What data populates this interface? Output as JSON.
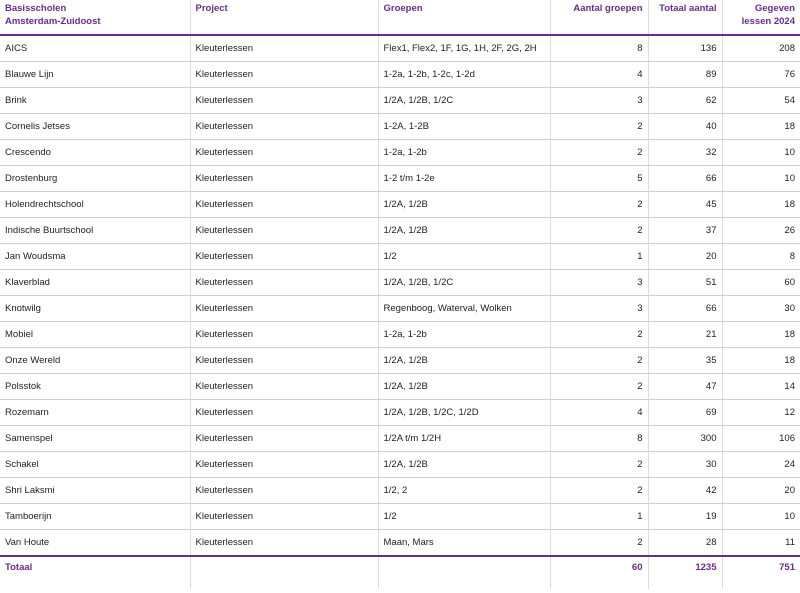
{
  "header": [
    [
      "Basisscholen",
      "Amsterdam-Zuidoost"
    ],
    "Project",
    "Groepen",
    "Aantal groepen",
    "Totaal aantal",
    "Gegeven lessen 2024"
  ],
  "rows": [
    [
      "AICS",
      "Kleuterlessen",
      "Flex1, Flex2, 1F, 1G, 1H, 2F, 2G, 2H",
      8,
      136,
      208
    ],
    [
      "Blauwe Lijn",
      "Kleuterlessen",
      "1-2a, 1-2b, 1-2c, 1-2d",
      4,
      89,
      76
    ],
    [
      "Brink",
      "Kleuterlessen",
      "1/2A, 1/2B, 1/2C",
      3,
      62,
      54
    ],
    [
      "Cornelis Jetses",
      "Kleuterlessen",
      "1-2A, 1-2B",
      2,
      40,
      18
    ],
    [
      "Crescendo",
      "Kleuterlessen",
      "1-2a, 1-2b",
      2,
      32,
      10
    ],
    [
      "Drostenburg",
      "Kleuterlessen",
      "1-2 t/m 1-2e",
      5,
      66,
      10
    ],
    [
      "Holendrechtschool",
      "Kleuterlessen",
      "1/2A, 1/2B",
      2,
      45,
      18
    ],
    [
      "Indische Buurtschool",
      "Kleuterlessen",
      "1/2A, 1/2B",
      2,
      37,
      26
    ],
    [
      "Jan Woudsma",
      "Kleuterlessen",
      "1/2",
      1,
      20,
      8
    ],
    [
      "Klaverblad",
      "Kleuterlessen",
      "1/2A, 1/2B, 1/2C",
      3,
      51,
      60
    ],
    [
      "Knotwilg",
      "Kleuterlessen",
      "Regenboog, Waterval, Wolken",
      3,
      66,
      30
    ],
    [
      "Mobiel",
      "Kleuterlessen",
      "1-2a, 1-2b",
      2,
      21,
      18
    ],
    [
      "Onze Wereld",
      "Kleuterlessen",
      "1/2A, 1/2B",
      2,
      35,
      18
    ],
    [
      "Polsstok",
      "Kleuterlessen",
      "1/2A, 1/2B",
      2,
      47,
      14
    ],
    [
      "Rozemarn",
      "Kleuterlessen",
      "1/2A, 1/2B, 1/2C, 1/2D",
      4,
      69,
      12
    ],
    [
      "Samenspel",
      "Kleuterlessen",
      "1/2A t/m 1/2H",
      8,
      300,
      106
    ],
    [
      "Schakel",
      "Kleuterlessen",
      "1/2A, 1/2B",
      2,
      30,
      24
    ],
    [
      "Shri Laksmi",
      "Kleuterlessen",
      "1/2, 2",
      2,
      42,
      20
    ],
    [
      "Tamboerijn",
      "Kleuterlessen",
      "1/2",
      1,
      19,
      10
    ],
    [
      "Van Houte",
      "Kleuterlessen",
      "Maan, Mars",
      2,
      28,
      11
    ]
  ],
  "total": {
    "label": "Totaal",
    "values": [
      60,
      1235,
      751
    ]
  }
}
